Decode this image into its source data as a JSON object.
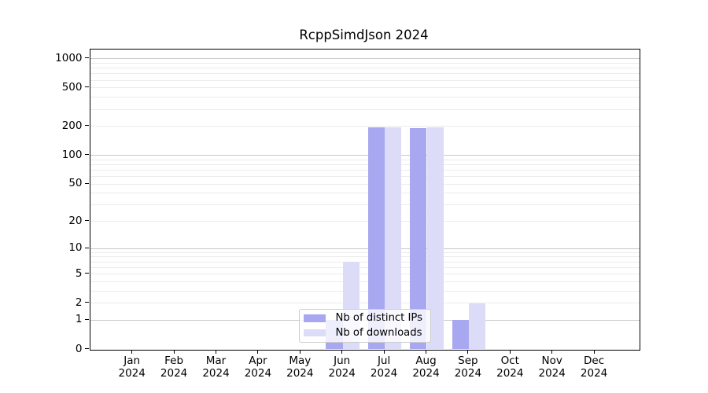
{
  "title": "RcppSimdJson 2024",
  "chart_data": {
    "type": "bar",
    "title": "RcppSimdJson 2024",
    "xlabel": "",
    "ylabel": "",
    "x_months": [
      "Jan",
      "Feb",
      "Mar",
      "Apr",
      "May",
      "Jun",
      "Jul",
      "Aug",
      "Sep",
      "Oct",
      "Nov",
      "Dec"
    ],
    "x_year": "2024",
    "y_ticks": [
      0,
      1,
      2,
      5,
      10,
      20,
      50,
      100,
      200,
      500,
      1000
    ],
    "yscale": "log1p",
    "ylim": [
      0,
      1260
    ],
    "grid": "horizontal",
    "legend_position": "inside-bottom-center",
    "series": [
      {
        "name": "Nb of distinct IPs",
        "color": "#a8a8f0",
        "values": [
          0,
          0,
          0,
          0,
          0,
          1,
          197,
          192,
          1,
          0,
          0,
          0
        ]
      },
      {
        "name": "Nb of downloads",
        "color": "#dcdcf8",
        "values": [
          0,
          0,
          0,
          0,
          0,
          7,
          197,
          197,
          2,
          0,
          0,
          0
        ]
      }
    ]
  }
}
